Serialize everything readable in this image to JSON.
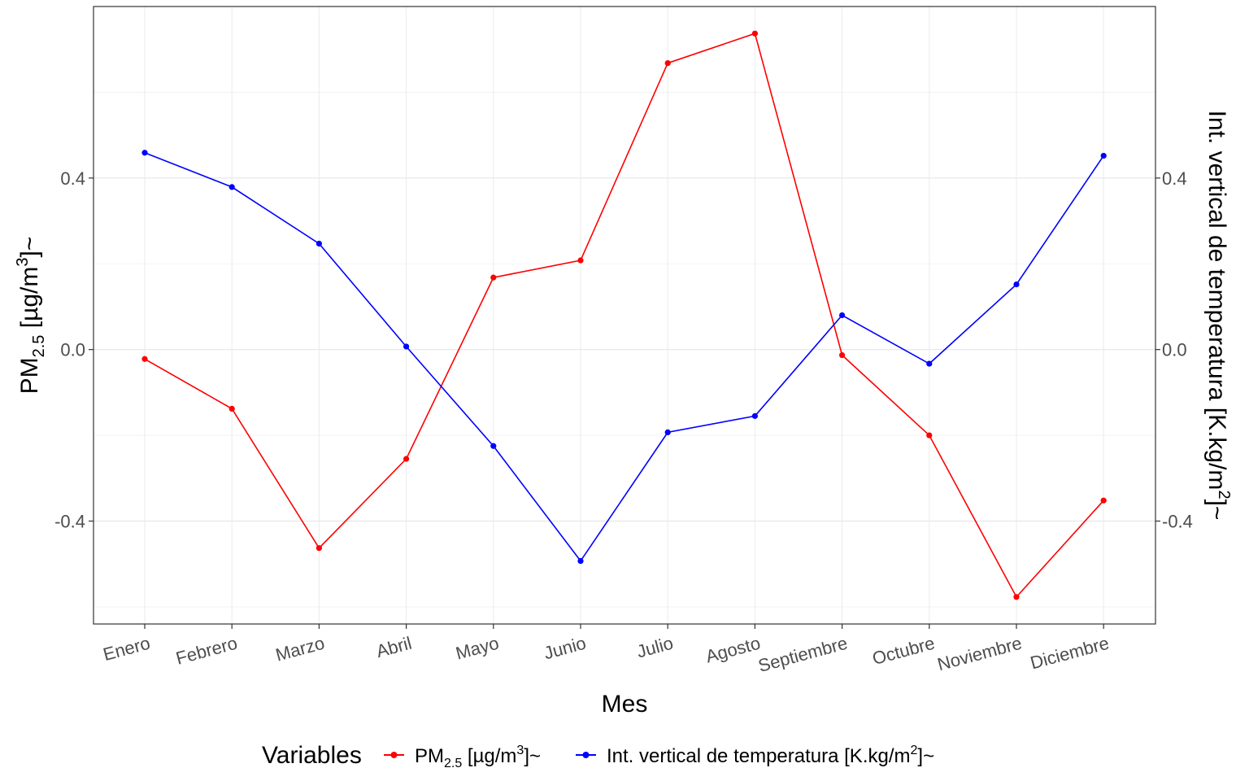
{
  "chart_data": {
    "type": "line",
    "categories": [
      "Enero",
      "Febrero",
      "Marzo",
      "Abril",
      "Mayo",
      "Junio",
      "Julio",
      "Agosto",
      "Septiembre",
      "Octubre",
      "Noviembre",
      "Diciembre"
    ],
    "series": [
      {
        "name": "PM2.5 [µg/m3]~",
        "color": "#ff0000",
        "values": [
          -0.022,
          -0.138,
          -0.463,
          -0.255,
          0.168,
          0.208,
          0.668,
          0.737,
          -0.013,
          -0.2,
          -0.577,
          -0.352
        ]
      },
      {
        "name": "Int. vertical de temperatura  [K.kg/m2]~",
        "color": "#0000ff",
        "values": [
          0.459,
          0.379,
          0.247,
          0.007,
          -0.225,
          -0.493,
          -0.193,
          -0.155,
          0.08,
          -0.033,
          0.152,
          0.452
        ]
      }
    ],
    "xlabel": "Mes",
    "ylabel_left": "PM2.5 [µg/m3]~",
    "ylabel_right": "Int. vertical de temperatura [K.kg/m2]~",
    "ylim": [
      -0.64,
      0.8
    ],
    "yticks": [
      -0.4,
      0.0,
      0.4
    ],
    "ytick_labels": [
      "-0.4",
      "0.0",
      "0.4"
    ],
    "legend_title": "Variables",
    "legend_position": "bottom",
    "grid": true
  }
}
